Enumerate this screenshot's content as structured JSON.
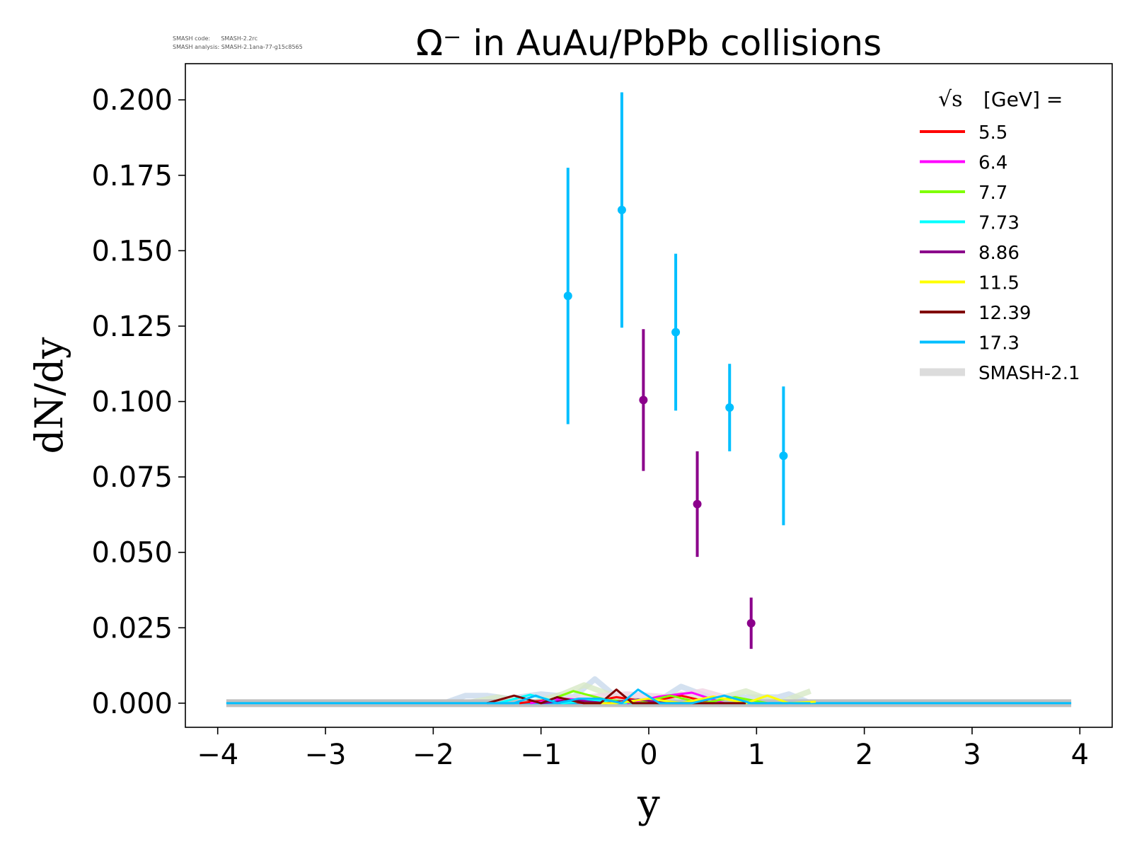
{
  "meta": {
    "code_label": "SMASH code:",
    "code_value": "SMASH-2.2rc",
    "analysis_label": "SMASH analysis:",
    "analysis_value": "SMASH-2.1ana-77-g15c8565"
  },
  "chart_data": {
    "type": "scatter",
    "title": "Ω⁻ in AuAu/PbPb collisions",
    "xlabel": "y",
    "ylabel": "dN/dy",
    "xlim": [
      -4.3,
      4.3
    ],
    "ylim": [
      -0.008,
      0.212
    ],
    "xticks": [
      -4,
      -3,
      -2,
      -1,
      0,
      1,
      2,
      3,
      4
    ],
    "xtick_labels": [
      "−4",
      "−3",
      "−2",
      "−1",
      "0",
      "1",
      "2",
      "3",
      "4"
    ],
    "yticks": [
      0,
      0.025,
      0.05,
      0.075,
      0.1,
      0.125,
      0.15,
      0.175,
      0.2
    ],
    "ytick_labels": [
      "0.000",
      "0.025",
      "0.050",
      "0.075",
      "0.100",
      "0.125",
      "0.150",
      "0.175",
      "0.200"
    ],
    "grid": false,
    "legend": {
      "title_sqrt": "√s",
      "title_rest": "[GeV] =",
      "placement": "top-right",
      "entries": [
        {
          "label": "5.5",
          "color": "#ff0000"
        },
        {
          "label": "6.4",
          "color": "#ff00ff"
        },
        {
          "label": "7.7",
          "color": "#7fff00"
        },
        {
          "label": "7.73",
          "color": "#00ffff"
        },
        {
          "label": "8.86",
          "color": "#8b008b"
        },
        {
          "label": "11.5",
          "color": "#ffff00"
        },
        {
          "label": "12.39",
          "color": "#800000"
        },
        {
          "label": "17.3",
          "color": "#00bfff"
        },
        {
          "label": "SMASH-2.1",
          "color": "#dcdcdc",
          "thick": true
        }
      ]
    },
    "data_points": [
      {
        "energy": "8.86",
        "color": "#8b008b",
        "x": [
          -0.05,
          0.45,
          0.95
        ],
        "y": [
          0.1005,
          0.066,
          0.0265
        ],
        "yerr": [
          0.0235,
          0.0175,
          0.0085
        ]
      },
      {
        "energy": "17.3",
        "color": "#00bfff",
        "x": [
          -0.75,
          -0.25,
          0.25,
          0.75,
          1.25
        ],
        "y": [
          0.135,
          0.1635,
          0.123,
          0.098,
          0.082
        ],
        "yerr": [
          0.0425,
          0.039,
          0.026,
          0.0145,
          0.023
        ]
      }
    ],
    "smash_series": [
      {
        "energy": "5.5",
        "color": "#ff0000",
        "x": [
          -1.2,
          -0.9,
          -0.6,
          -0.3,
          0.0,
          0.3,
          0.6
        ],
        "y": [
          0.0,
          0.0012,
          0.0,
          0.002,
          0.0005,
          0.0025,
          0.0
        ]
      },
      {
        "energy": "6.4",
        "color": "#ff00ff",
        "x": [
          -1.1,
          -0.8,
          -0.5,
          -0.2,
          0.1,
          0.4,
          0.7
        ],
        "y": [
          0.0,
          0.0015,
          0.0008,
          0.0,
          0.0022,
          0.0035,
          0.0
        ]
      },
      {
        "energy": "7.7",
        "color": "#7fff00",
        "x": [
          -1.0,
          -0.7,
          -0.4,
          -0.1,
          0.2,
          0.5,
          0.8,
          1.1
        ],
        "y": [
          0.0,
          0.004,
          0.0012,
          0.0,
          0.0025,
          0.0,
          0.002,
          0.0
        ]
      },
      {
        "energy": "7.73",
        "color": "#00ffff",
        "x": [
          -1.4,
          -1.1,
          -0.8,
          -0.5,
          -0.2
        ],
        "y": [
          0.0,
          0.0028,
          0.0,
          0.001,
          0.0
        ]
      },
      {
        "energy": "8.86",
        "color": "#8b008b",
        "x": [
          -1.0,
          -0.7,
          -0.4,
          -0.1,
          0.2
        ],
        "y": [
          0.0,
          0.001,
          0.0,
          0.0012,
          0.0
        ]
      },
      {
        "energy": "11.5",
        "color": "#ffff00",
        "x": [
          -0.6,
          -0.3,
          0.0,
          0.3,
          0.6,
          0.9,
          1.1,
          1.3,
          1.55
        ],
        "y": [
          0.0,
          0.0,
          0.0015,
          0.0,
          0.0022,
          0.0,
          0.0025,
          0.0,
          0.0005
        ]
      },
      {
        "energy": "12.39",
        "color": "#800000",
        "x": [
          -1.5,
          -1.25,
          -1.0,
          -0.85,
          -0.6,
          -0.45,
          -0.3,
          -0.15,
          0.1,
          0.4,
          0.9
        ],
        "y": [
          0.0,
          0.0025,
          0.0,
          0.002,
          0.0,
          0.0,
          0.0045,
          0.0,
          0.0,
          0.0,
          0.0
        ]
      },
      {
        "energy": "17.3",
        "color": "#00bfff",
        "x": [
          -1.5,
          -1.25,
          -1.05,
          -0.85,
          -0.65,
          -0.45,
          -0.25,
          -0.1,
          0.1,
          0.4,
          0.7,
          0.95,
          1.2,
          1.5
        ],
        "y": [
          0.0,
          0.0,
          0.0025,
          0.0,
          0.0015,
          0.0015,
          0.0,
          0.0045,
          0.0,
          0.0,
          0.0025,
          0.0,
          0.0,
          0.0
        ]
      }
    ],
    "smash_2_1_bands": [
      {
        "color": "#c9d9ec",
        "x": [
          -1.9,
          -1.7,
          -1.5,
          -1.3,
          -1.0,
          -0.7,
          -0.5,
          -0.3,
          -0.1,
          0.1,
          0.3,
          0.6,
          0.9,
          1.2,
          1.3,
          1.5
        ],
        "y": [
          0.0,
          0.0025,
          0.0025,
          0.0015,
          0.003,
          0.002,
          0.008,
          0.002,
          0.001,
          0.001,
          0.0055,
          0.0015,
          0.002,
          0.002,
          0.003,
          0.0
        ]
      },
      {
        "color": "#d7e8c6",
        "x": [
          -1.7,
          -1.4,
          -1.1,
          -0.8,
          -0.6,
          -0.3,
          0.0,
          0.3,
          0.6,
          0.9,
          1.2,
          1.5
        ],
        "y": [
          0.0,
          0.002,
          0.0,
          0.003,
          0.006,
          0.002,
          0.0,
          0.003,
          0.001,
          0.004,
          0.0,
          0.004
        ]
      },
      {
        "color": "#f0d2e2",
        "x": [
          -1.0,
          -0.6,
          -0.2,
          0.2,
          0.5,
          0.8,
          1.1
        ],
        "y": [
          0.0,
          0.002,
          0.003,
          0.002,
          0.004,
          0.001,
          0.0
        ]
      }
    ],
    "baseline": {
      "x": [
        -3.92,
        3.92
      ],
      "y": [
        0,
        0
      ],
      "band_color": "#bfbfbf",
      "line_color": "#00bfff"
    }
  }
}
